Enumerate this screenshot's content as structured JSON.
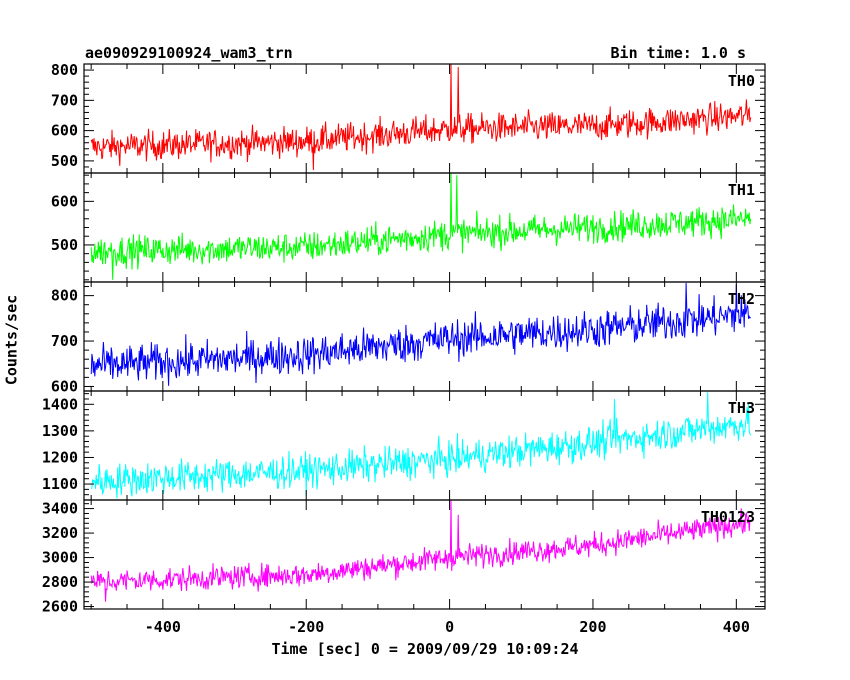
{
  "header": {
    "left": "ae090929100924_wam3_trn",
    "right": "Bin time: 1.0 s"
  },
  "chart_data": {
    "type": "line",
    "xlabel": "Time [sec] 0 = 2009/09/29 10:09:24",
    "ylabel": "Counts/sec",
    "xlim": [
      -510,
      440
    ],
    "xticks": [
      -400,
      -200,
      0,
      200,
      400
    ],
    "x_range": [
      -500,
      420
    ],
    "bin_time": 1.0,
    "panels": [
      {
        "name": "TH0",
        "color": "#ff0000",
        "ylim": [
          460,
          820
        ],
        "yticks": [
          500,
          600,
          700,
          800
        ],
        "trend": [
          [
            -500,
            545
          ],
          [
            -200,
            565
          ],
          [
            0,
            605
          ],
          [
            200,
            615
          ],
          [
            420,
            650
          ]
        ],
        "noise": 35,
        "spikes": [
          [
            2,
            820
          ],
          [
            12,
            810
          ],
          [
            -190,
            470
          ]
        ]
      },
      {
        "name": "TH1",
        "color": "#00ff00",
        "ylim": [
          415,
          665
        ],
        "yticks": [
          500,
          600
        ],
        "trend": [
          [
            -500,
            485
          ],
          [
            -200,
            495
          ],
          [
            0,
            525
          ],
          [
            200,
            540
          ],
          [
            420,
            560
          ]
        ],
        "noise": 25,
        "spikes": [
          [
            2,
            665
          ],
          [
            10,
            660
          ],
          [
            -470,
            420
          ]
        ]
      },
      {
        "name": "TH2",
        "color": "#0000ff",
        "ylim": [
          590,
          830
        ],
        "yticks": [
          600,
          700,
          800
        ],
        "trend": [
          [
            -500,
            645
          ],
          [
            -200,
            670
          ],
          [
            0,
            705
          ],
          [
            200,
            725
          ],
          [
            420,
            760
          ]
        ],
        "noise": 30,
        "spikes": [
          [
            330,
            828
          ],
          [
            400,
            825
          ]
        ]
      },
      {
        "name": "TH3",
        "color": "#00ffff",
        "ylim": [
          1040,
          1450
        ],
        "yticks": [
          1100,
          1200,
          1300,
          1400
        ],
        "trend": [
          [
            -500,
            1110
          ],
          [
            -200,
            1150
          ],
          [
            0,
            1195
          ],
          [
            200,
            1255
          ],
          [
            420,
            1330
          ]
        ],
        "noise": 45,
        "spikes": [
          [
            360,
            1445
          ],
          [
            230,
            1420
          ]
        ]
      },
      {
        "name": "TH0123",
        "color": "#ff00ff",
        "ylim": [
          2580,
          3470
        ],
        "yticks": [
          2600,
          2800,
          3000,
          3200,
          3400
        ],
        "trend": [
          [
            -500,
            2800
          ],
          [
            -200,
            2860
          ],
          [
            0,
            3000
          ],
          [
            200,
            3100
          ],
          [
            420,
            3290
          ]
        ],
        "noise": 70,
        "spikes": [
          [
            2,
            3470
          ],
          [
            12,
            3350
          ],
          [
            -480,
            2640
          ]
        ]
      }
    ]
  }
}
